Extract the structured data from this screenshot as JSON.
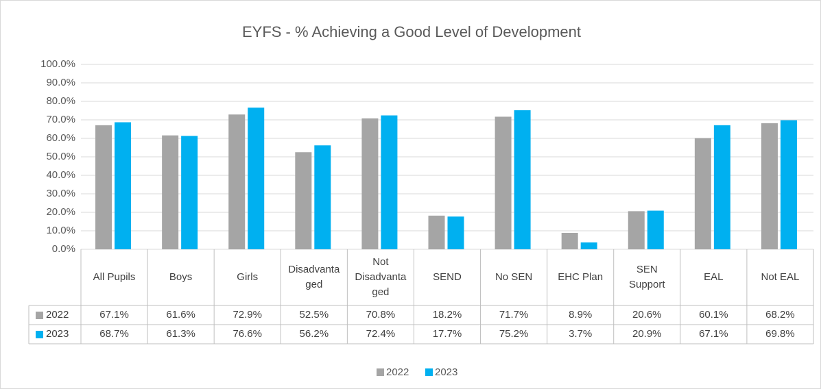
{
  "chart_data": {
    "type": "bar",
    "title": "EYFS - % Achieving a Good Level of Development",
    "categories": [
      "All Pupils",
      "Boys",
      "Girls",
      "Disadvantaged",
      "Not Disadvantaged",
      "SEND",
      "No SEN",
      "EHC Plan",
      "SEN Support",
      "EAL",
      "Not EAL"
    ],
    "series": [
      {
        "name": "2022",
        "color": "#a5a5a5",
        "values": [
          67.1,
          61.6,
          72.9,
          52.5,
          70.8,
          18.2,
          71.7,
          8.9,
          20.6,
          60.1,
          68.2
        ],
        "value_labels": [
          "67.1%",
          "61.6%",
          "72.9%",
          "52.5%",
          "70.8%",
          "18.2%",
          "71.7%",
          "8.9%",
          "20.6%",
          "60.1%",
          "68.2%"
        ]
      },
      {
        "name": "2023",
        "color": "#00b0f0",
        "values": [
          68.7,
          61.3,
          76.6,
          56.2,
          72.4,
          17.7,
          75.2,
          3.7,
          20.9,
          67.1,
          69.8
        ],
        "value_labels": [
          "68.7%",
          "61.3%",
          "76.6%",
          "56.2%",
          "72.4%",
          "17.7%",
          "75.2%",
          "3.7%",
          "20.9%",
          "67.1%",
          "69.8%"
        ]
      }
    ],
    "ylim": [
      0,
      100
    ],
    "yticks": [
      {
        "value": 0,
        "label": "0.0%"
      },
      {
        "value": 10,
        "label": "10.0%"
      },
      {
        "value": 20,
        "label": "20.0%"
      },
      {
        "value": 30,
        "label": "30.0%"
      },
      {
        "value": 40,
        "label": "40.0%"
      },
      {
        "value": 50,
        "label": "50.0%"
      },
      {
        "value": 60,
        "label": "60.0%"
      },
      {
        "value": 70,
        "label": "70.0%"
      },
      {
        "value": 80,
        "label": "80.0%"
      },
      {
        "value": 90,
        "label": "90.0%"
      },
      {
        "value": 100,
        "label": "100.0%"
      }
    ],
    "grid": true,
    "legend": "bottom"
  }
}
